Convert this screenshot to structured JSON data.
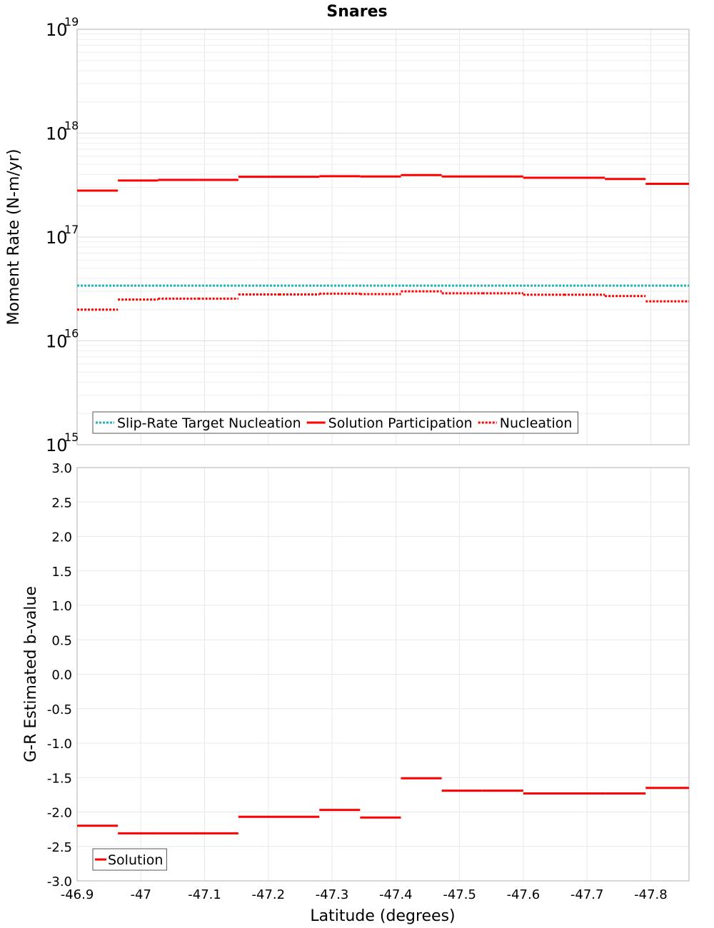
{
  "chart_data": [
    {
      "type": "line",
      "title": "Snares",
      "xlabel": "Latitude (degrees)",
      "ylabel": "Moment Rate (N-m/yr)",
      "yscale": "log",
      "ylim": [
        1000000000000000.0,
        1e+19
      ],
      "xlim": [
        -46.9,
        -47.86
      ],
      "grid": true,
      "x_tick_labels": [
        "-46.9",
        "-47",
        "-47.1",
        "-47.2",
        "-47.3",
        "-47.4",
        "-47.5",
        "-47.6",
        "-47.7",
        "-47.8"
      ],
      "y_tick_labels": [
        {
          "base": "10",
          "exp": "15"
        },
        {
          "base": "10",
          "exp": "16"
        },
        {
          "base": "10",
          "exp": "17"
        },
        {
          "base": "10",
          "exp": "18"
        },
        {
          "base": "10",
          "exp": "19"
        }
      ],
      "legend_position": "bottom-left",
      "series": [
        {
          "name": "Slip-Rate Target Nucleation",
          "style": "dotted",
          "color": "#1fb5b5",
          "segments": [
            {
              "x": [
                -46.9,
                -47.86
              ],
              "y": 3.4e+16
            }
          ]
        },
        {
          "name": "Solution Participation",
          "style": "solid",
          "color": "#ff0000",
          "segments": [
            {
              "x": [
                -46.9,
                -46.964
              ],
              "y": 2.8e+17
            },
            {
              "x": [
                -46.964,
                -47.027
              ],
              "y": 3.5e+17
            },
            {
              "x": [
                -47.027,
                -47.09
              ],
              "y": 3.55e+17
            },
            {
              "x": [
                -47.09,
                -47.153
              ],
              "y": 3.55e+17
            },
            {
              "x": [
                -47.153,
                -47.217
              ],
              "y": 3.8e+17
            },
            {
              "x": [
                -47.217,
                -47.28
              ],
              "y": 3.8e+17
            },
            {
              "x": [
                -47.28,
                -47.344
              ],
              "y": 3.85e+17
            },
            {
              "x": [
                -47.344,
                -47.408
              ],
              "y": 3.82e+17
            },
            {
              "x": [
                -47.408,
                -47.472
              ],
              "y": 3.95e+17
            },
            {
              "x": [
                -47.472,
                -47.536
              ],
              "y": 3.82e+17
            },
            {
              "x": [
                -47.536,
                -47.6
              ],
              "y": 3.82e+17
            },
            {
              "x": [
                -47.6,
                -47.664
              ],
              "y": 3.72e+17
            },
            {
              "x": [
                -47.664,
                -47.728
              ],
              "y": 3.72e+17
            },
            {
              "x": [
                -47.728,
                -47.792
              ],
              "y": 3.62e+17
            },
            {
              "x": [
                -47.792,
                -47.86
              ],
              "y": 3.25e+17
            }
          ]
        },
        {
          "name": "Nucleation",
          "style": "dotted",
          "color": "#ff0000",
          "segments": [
            {
              "x": [
                -46.9,
                -46.964
              ],
              "y": 2e+16
            },
            {
              "x": [
                -46.964,
                -47.027
              ],
              "y": 2.5e+16
            },
            {
              "x": [
                -47.027,
                -47.09
              ],
              "y": 2.55e+16
            },
            {
              "x": [
                -47.09,
                -47.153
              ],
              "y": 2.55e+16
            },
            {
              "x": [
                -47.153,
                -47.217
              ],
              "y": 2.8e+16
            },
            {
              "x": [
                -47.217,
                -47.28
              ],
              "y": 2.8e+16
            },
            {
              "x": [
                -47.28,
                -47.344
              ],
              "y": 2.85e+16
            },
            {
              "x": [
                -47.344,
                -47.408
              ],
              "y": 2.82e+16
            },
            {
              "x": [
                -47.408,
                -47.472
              ],
              "y": 3e+16
            },
            {
              "x": [
                -47.472,
                -47.536
              ],
              "y": 2.87e+16
            },
            {
              "x": [
                -47.536,
                -47.6
              ],
              "y": 2.87e+16
            },
            {
              "x": [
                -47.6,
                -47.664
              ],
              "y": 2.78e+16
            },
            {
              "x": [
                -47.664,
                -47.728
              ],
              "y": 2.78e+16
            },
            {
              "x": [
                -47.728,
                -47.792
              ],
              "y": 2.7e+16
            },
            {
              "x": [
                -47.792,
                -47.86
              ],
              "y": 2.4e+16
            }
          ]
        }
      ]
    },
    {
      "type": "line",
      "title": "",
      "xlabel": "Latitude (degrees)",
      "ylabel": "G-R Estimated b-value",
      "yscale": "linear",
      "ylim": [
        -3.0,
        3.0
      ],
      "xlim": [
        -46.9,
        -47.86
      ],
      "grid": true,
      "x_tick_labels": [
        "-46.9",
        "-47",
        "-47.1",
        "-47.2",
        "-47.3",
        "-47.4",
        "-47.5",
        "-47.6",
        "-47.7",
        "-47.8"
      ],
      "y_tick_labels": [
        "3.0",
        "2.5",
        "2.0",
        "1.5",
        "1.0",
        "0.5",
        "0.0",
        "-0.5",
        "-1.0",
        "-1.5",
        "-2.0",
        "-2.5",
        "-3.0"
      ],
      "legend_position": "bottom-left",
      "series": [
        {
          "name": "Solution",
          "style": "solid",
          "color": "#ff0000",
          "segments": [
            {
              "x": [
                -46.9,
                -46.964
              ],
              "y": -2.2
            },
            {
              "x": [
                -46.964,
                -47.027
              ],
              "y": -2.31
            },
            {
              "x": [
                -47.027,
                -47.09
              ],
              "y": -2.31
            },
            {
              "x": [
                -47.09,
                -47.153
              ],
              "y": -2.31
            },
            {
              "x": [
                -47.153,
                -47.217
              ],
              "y": -2.07
            },
            {
              "x": [
                -47.217,
                -47.28
              ],
              "y": -2.07
            },
            {
              "x": [
                -47.28,
                -47.344
              ],
              "y": -1.97
            },
            {
              "x": [
                -47.344,
                -47.408
              ],
              "y": -2.08
            },
            {
              "x": [
                -47.408,
                -47.472
              ],
              "y": -1.51
            },
            {
              "x": [
                -47.472,
                -47.536
              ],
              "y": -1.69
            },
            {
              "x": [
                -47.536,
                -47.6
              ],
              "y": -1.69
            },
            {
              "x": [
                -47.6,
                -47.664
              ],
              "y": -1.73
            },
            {
              "x": [
                -47.664,
                -47.728
              ],
              "y": -1.73
            },
            {
              "x": [
                -47.728,
                -47.792
              ],
              "y": -1.73
            },
            {
              "x": [
                -47.792,
                -47.86
              ],
              "y": -1.65
            }
          ]
        }
      ]
    }
  ]
}
